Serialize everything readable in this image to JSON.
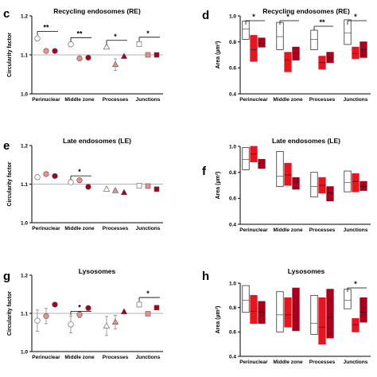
{
  "colors": {
    "open": "#ffffff",
    "light": "#f28c8c",
    "mid": "#e8141e",
    "dark": "#a8001c",
    "axis": "#000000",
    "ref": "#9a9a9a",
    "errbar": "#888888"
  },
  "chart_data": [
    {
      "id": "c",
      "type": "scatter",
      "label": "c",
      "title": "Recycling endosomes (RE)",
      "ylabel": "Circularity factor",
      "ylim": [
        1.0,
        1.2
      ],
      "yticks": [
        "1.0",
        "1.1",
        "1.2"
      ],
      "ref": 1.1,
      "categories": [
        "Perinuclear",
        "Middle zone",
        "Processes",
        "Junctions"
      ],
      "marker": "circle",
      "series": [
        {
          "color": "open",
          "values": [
            1.142,
            1.127,
            1.12,
            1.128
          ],
          "errors": [
            0.006,
            0.005,
            0.005,
            0.005
          ]
        },
        {
          "color": "light",
          "values": [
            1.11,
            1.091,
            1.075,
            1.1
          ],
          "errors": [
            0.004,
            0.003,
            0.015,
            0.003
          ]
        },
        {
          "color": "dark",
          "values": [
            1.11,
            1.093,
            1.096,
            1.1
          ],
          "errors": [
            0.003,
            0.002,
            0.003,
            0.002
          ]
        }
      ],
      "markers_by_category": [
        "circle",
        "circle",
        "triangle",
        "square"
      ],
      "significance": [
        [
          "**",
          0
        ],
        [
          "**",
          1
        ],
        [
          "*",
          2
        ],
        [
          "*",
          3
        ]
      ]
    },
    {
      "id": "d",
      "type": "box",
      "label": "d",
      "title": "Recycling endosomes (RE)",
      "ylabel": "Area (µm²)",
      "ylim": [
        0.4,
        1.0
      ],
      "yticks": [
        "0.4",
        "0.6",
        "0.8",
        "1.0"
      ],
      "categories": [
        "Perinuclear",
        "Middle zone",
        "Processes",
        "Junctions"
      ],
      "boxes": [
        [
          [
            0.82,
            0.96,
            0.9
          ],
          [
            0.65,
            0.85,
            0.74
          ],
          [
            0.76,
            0.83,
            0.79
          ]
        ],
        [
          [
            0.74,
            0.95,
            0.84
          ],
          [
            0.57,
            0.72,
            0.66
          ],
          [
            0.66,
            0.76,
            0.71
          ]
        ],
        [
          [
            0.74,
            0.89,
            0.82
          ],
          [
            0.59,
            0.69,
            0.64
          ],
          [
            0.64,
            0.72,
            0.68
          ]
        ],
        [
          [
            0.78,
            0.97,
            0.87
          ],
          [
            0.67,
            0.76,
            0.71
          ],
          [
            0.68,
            0.8,
            0.74
          ]
        ]
      ],
      "significance": [
        [
          "*",
          0
        ],
        [
          "*",
          1
        ],
        [
          "**",
          2
        ],
        [
          "*",
          3
        ]
      ]
    },
    {
      "id": "e",
      "type": "scatter",
      "label": "e",
      "title": "Late endosomes (LE)",
      "ylabel": "Circularity factor",
      "ylim": [
        1.0,
        1.2
      ],
      "yticks": [
        "1.0",
        "1.1",
        "1.2"
      ],
      "ref": 1.1,
      "categories": [
        "Perinuclear",
        "Middle zone",
        "Processes",
        "Junctions"
      ],
      "series": [
        {
          "color": "open",
          "values": [
            1.118,
            1.105,
            1.087,
            1.096
          ],
          "errors": [
            0.005,
            0.004,
            0.003,
            0.004
          ]
        },
        {
          "color": "light",
          "values": [
            1.126,
            1.11,
            1.083,
            1.095
          ],
          "errors": [
            0.004,
            0.003,
            0.003,
            0.003
          ]
        },
        {
          "color": "dark",
          "values": [
            1.121,
            1.093,
            1.078,
            1.087
          ],
          "errors": [
            0.003,
            0.002,
            0.002,
            0.002
          ]
        }
      ],
      "markers_by_category": [
        "circle",
        "circle",
        "triangle",
        "square"
      ],
      "significance": [
        [
          "*",
          1
        ]
      ]
    },
    {
      "id": "f",
      "type": "box",
      "label": "f",
      "title": "Late endosomes (LE)",
      "ylabel": "Area (µm²)",
      "ylim": [
        0.4,
        1.0
      ],
      "yticks": [
        "0.4",
        "0.6",
        "0.8",
        "1.0"
      ],
      "categories": [
        "Perinuclear",
        "Middle zone",
        "Processes",
        "Junctions"
      ],
      "boxes": [
        [
          [
            0.82,
            0.99,
            0.9
          ],
          [
            0.88,
            1.0,
            0.94
          ],
          [
            0.83,
            0.9,
            0.87
          ]
        ],
        [
          [
            0.69,
            0.96,
            0.77
          ],
          [
            0.7,
            0.87,
            0.78
          ],
          [
            0.67,
            0.76,
            0.73
          ]
        ],
        [
          [
            0.61,
            0.8,
            0.69
          ],
          [
            0.64,
            0.76,
            0.7
          ],
          [
            0.58,
            0.69,
            0.64
          ]
        ],
        [
          [
            0.65,
            0.81,
            0.72
          ],
          [
            0.65,
            0.79,
            0.73
          ],
          [
            0.66,
            0.73,
            0.69
          ]
        ]
      ],
      "significance": []
    },
    {
      "id": "g",
      "type": "scatter",
      "label": "g",
      "title": "Lysosomes",
      "ylabel": "Circularity factor",
      "ylim": [
        1.0,
        1.2
      ],
      "yticks": [
        "1.0",
        "1.1",
        "1.2"
      ],
      "ref": 1.1,
      "categories": [
        "Perinuclear",
        "Middle zone",
        "Processes",
        "Junctions"
      ],
      "series": [
        {
          "color": "open",
          "values": [
            1.081,
            1.071,
            1.067,
            1.123
          ],
          "errors": [
            0.028,
            0.022,
            0.025,
            0.006
          ]
        },
        {
          "color": "light",
          "values": [
            1.093,
            1.097,
            1.077,
            1.099
          ],
          "errors": [
            0.02,
            0.008,
            0.018,
            0.003
          ]
        },
        {
          "color": "dark",
          "values": [
            1.123,
            1.114,
            1.104,
            1.115
          ],
          "errors": [
            0.003,
            0.003,
            0.004,
            0.003
          ]
        }
      ],
      "markers_by_category": [
        "circle",
        "circle",
        "triangle",
        "square"
      ],
      "significance": [
        [
          "*",
          1
        ],
        [
          "*",
          3
        ]
      ]
    },
    {
      "id": "h",
      "type": "box",
      "label": "h",
      "title": "Lysosomes",
      "ylabel": "Area (µm²)",
      "ylim": [
        0.4,
        1.0
      ],
      "yticks": [
        "0.4",
        "0.6",
        "0.8",
        "1.0"
      ],
      "categories": [
        "Perinuclear",
        "Middle zone",
        "Processes",
        "Junctions"
      ],
      "boxes": [
        [
          [
            0.76,
            0.98,
            0.86
          ],
          [
            0.67,
            0.9,
            0.77
          ],
          [
            0.67,
            0.85,
            0.76
          ]
        ],
        [
          [
            0.6,
            0.93,
            0.74
          ],
          [
            0.64,
            0.88,
            0.74
          ],
          [
            0.61,
            0.96,
            0.78
          ]
        ],
        [
          [
            0.58,
            0.9,
            0.67
          ],
          [
            0.5,
            0.88,
            0.64
          ],
          [
            0.55,
            0.95,
            0.72
          ]
        ],
        [
          [
            0.79,
            0.95,
            0.86
          ],
          [
            0.6,
            0.71,
            0.66
          ],
          [
            0.68,
            0.88,
            0.76
          ]
        ]
      ],
      "significance": [
        [
          "*",
          3
        ]
      ]
    }
  ]
}
